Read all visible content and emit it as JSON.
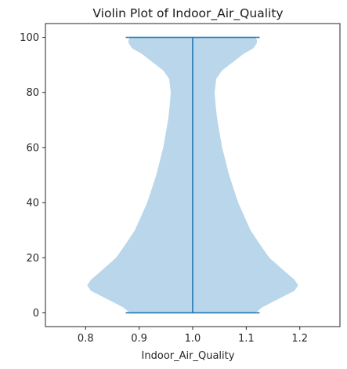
{
  "chart_data": {
    "type": "violin",
    "title": "Violin Plot of Indoor_Air_Quality",
    "xlabel": "Indoor_Air_Quality",
    "ylabel": "",
    "xlim": [
      0.725,
      1.275
    ],
    "ylim": [
      -5,
      105
    ],
    "x_ticks": [
      "0.8",
      "0.9",
      "1.0",
      "1.1",
      "1.2"
    ],
    "y_ticks": [
      "0",
      "20",
      "40",
      "60",
      "80",
      "100"
    ],
    "grid": false,
    "legend": "none",
    "series": [
      {
        "position": 1.0,
        "min": 0,
        "max": 100,
        "whisker_halfwidth": 0.125,
        "density_profile": [
          [
            0,
            0.117
          ],
          [
            2,
            0.13
          ],
          [
            4,
            0.15
          ],
          [
            6,
            0.17
          ],
          [
            8,
            0.19
          ],
          [
            10,
            0.197
          ],
          [
            12,
            0.19
          ],
          [
            15,
            0.172
          ],
          [
            20,
            0.143
          ],
          [
            25,
            0.125
          ],
          [
            30,
            0.108
          ],
          [
            40,
            0.085
          ],
          [
            50,
            0.068
          ],
          [
            60,
            0.055
          ],
          [
            70,
            0.046
          ],
          [
            75,
            0.043
          ],
          [
            80,
            0.041
          ],
          [
            85,
            0.044
          ],
          [
            88,
            0.055
          ],
          [
            91,
            0.075
          ],
          [
            94,
            0.095
          ],
          [
            96,
            0.113
          ],
          [
            98,
            0.12
          ],
          [
            99,
            0.12
          ],
          [
            100,
            0.117
          ]
        ]
      }
    ],
    "colors": {
      "violin_fill": "#bad6ea",
      "line": "#1f77b4",
      "axis": "#262626"
    }
  }
}
